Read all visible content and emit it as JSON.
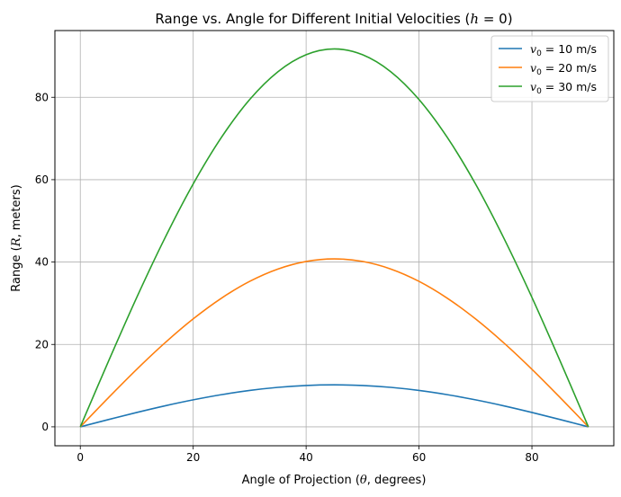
{
  "chart_data": {
    "type": "line",
    "title": "Range vs. Angle for Different Initial Velocities (h = 0)",
    "xlabel": "Angle of Projection (θ, degrees)",
    "ylabel": "Range (R, meters)",
    "xlim": [
      -4.5,
      94.5
    ],
    "ylim": [
      -4.6,
      96.2
    ],
    "xticks": [
      0,
      20,
      40,
      60,
      80
    ],
    "yticks": [
      0,
      20,
      40,
      60,
      80
    ],
    "grid": true,
    "legend_position": "top-right",
    "x": [
      0,
      5,
      10,
      15,
      20,
      25,
      30,
      35,
      40,
      45,
      50,
      55,
      60,
      65,
      70,
      75,
      80,
      85,
      90
    ],
    "series": [
      {
        "name": "v0 = 10 m/s",
        "name_parts": {
          "symbol": "v",
          "sub": "0",
          "rest": " = 10 m/s"
        },
        "color": "#1f77b4",
        "values": [
          0,
          1.77,
          3.49,
          5.1,
          6.55,
          7.81,
          8.83,
          9.58,
          10.04,
          10.19,
          10.04,
          9.58,
          8.83,
          7.81,
          6.55,
          5.1,
          3.49,
          1.77,
          0
        ]
      },
      {
        "name": "v0 = 20 m/s",
        "name_parts": {
          "symbol": "v",
          "sub": "0",
          "rest": " = 20 m/s"
        },
        "color": "#ff7f0e",
        "values": [
          0,
          7.09,
          13.96,
          20.39,
          26.21,
          31.23,
          35.31,
          38.31,
          40.15,
          40.77,
          40.15,
          38.31,
          35.31,
          31.23,
          26.21,
          20.39,
          13.96,
          7.09,
          0
        ]
      },
      {
        "name": "v0 = 30 m/s",
        "name_parts": {
          "symbol": "v",
          "sub": "0",
          "rest": " = 30 m/s"
        },
        "color": "#2ca02c",
        "values": [
          0,
          15.95,
          31.42,
          45.87,
          58.97,
          70.27,
          79.45,
          86.2,
          90.33,
          91.74,
          90.33,
          86.2,
          79.45,
          70.27,
          58.97,
          45.87,
          31.42,
          15.95,
          0
        ]
      }
    ]
  }
}
